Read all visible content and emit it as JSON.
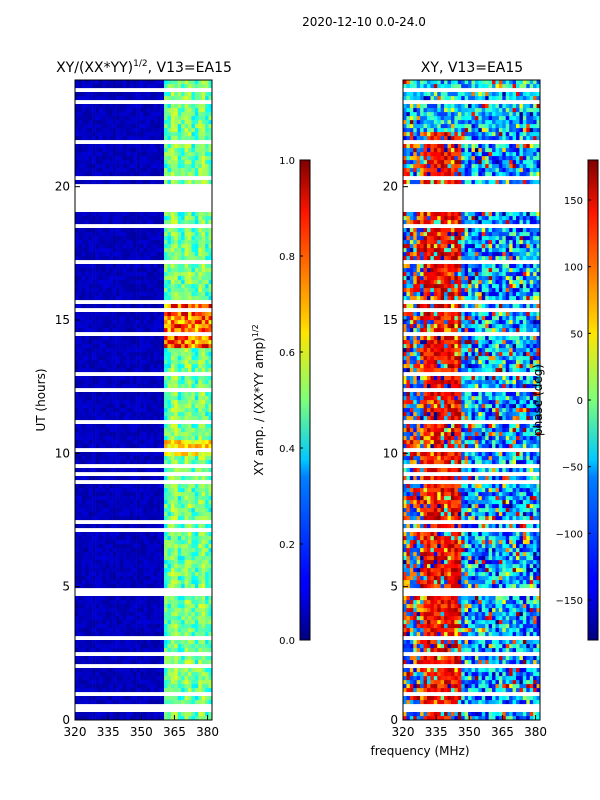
{
  "suptitle": "2020-12-10 0.0-24.0",
  "chart_data": [
    {
      "type": "heatmap",
      "title": "XY/(XX*YY)",
      "title_exponent": "1/2",
      "title_suffix": ", V13=EA15",
      "xlabel": "",
      "ylabel": "UT (hours)",
      "xlim": [
        320,
        382
      ],
      "ylim": [
        0,
        24
      ],
      "xticks": [
        "320",
        "335",
        "350",
        "365",
        "380"
      ],
      "yticks": [
        "0",
        "5",
        "10",
        "15",
        "20"
      ],
      "colorscale": "jet",
      "values_description": "mostly ~0.05 below 360 MHz; 0.3-0.6 above 360 MHz; peaks ~0.8-0.9 near 14.5 h",
      "colorbar": {
        "label": "XY amp. / (XX*YY amp)",
        "label_exponent": "1/2",
        "range": [
          0.0,
          1.0
        ],
        "ticks": [
          "0.0",
          "0.2",
          "0.4",
          "0.6",
          "0.8",
          "1.0"
        ]
      }
    },
    {
      "type": "heatmap",
      "title": "XY, V13=EA15",
      "xlabel": "frequency (MHz)",
      "ylabel": "",
      "xlim": [
        320,
        382
      ],
      "ylim": [
        0,
        24
      ],
      "xticks": [
        "320",
        "335",
        "350",
        "365",
        "380"
      ],
      "yticks": [
        "0",
        "5",
        "10",
        "15",
        "20"
      ],
      "colorscale": "jet",
      "values_description": "phase noisy across band; ~100-170 deg at 330-345 MHz, -120 to -30 deg elsewhere",
      "colorbar": {
        "label": "phase (deg)",
        "range": [
          -180,
          180
        ],
        "ticks": [
          "−150",
          "−100",
          "−50",
          "0",
          "50",
          "100",
          "150"
        ]
      }
    }
  ]
}
